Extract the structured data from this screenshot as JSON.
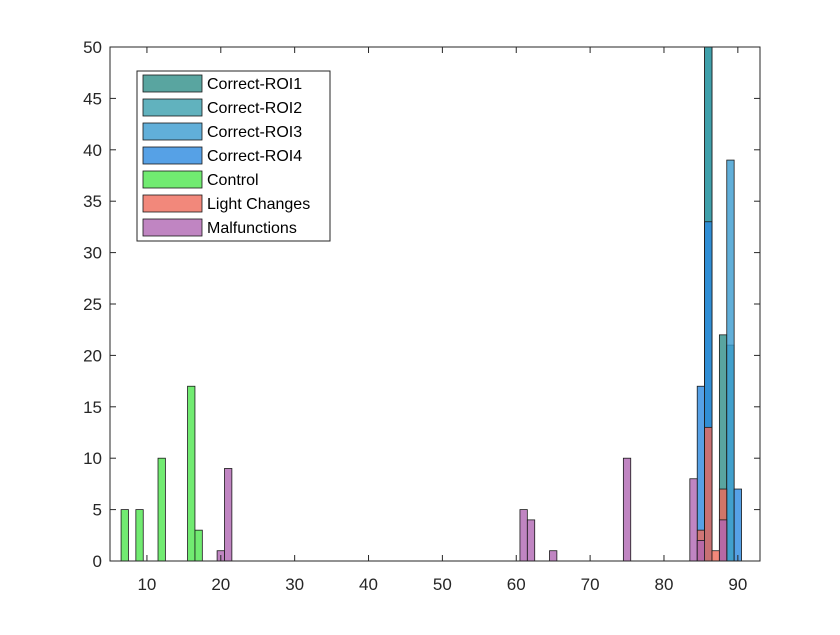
{
  "chart_data": {
    "type": "bar",
    "subtype": "overlaid-histogram",
    "title": "",
    "xlabel": "",
    "ylabel": "",
    "xlim": [
      5,
      93
    ],
    "ylim": [
      0,
      50
    ],
    "xticks": [
      10,
      20,
      30,
      40,
      50,
      60,
      70,
      80,
      90
    ],
    "yticks": [
      0,
      5,
      10,
      15,
      20,
      25,
      30,
      35,
      40,
      45,
      50
    ],
    "grid": false,
    "legend_position": "top-left",
    "bin_width": 1,
    "series": [
      {
        "name": "Correct-ROI1",
        "color": "#2f8f88",
        "bins": [
          {
            "x": 86,
            "count": 50
          },
          {
            "x": 88,
            "count": 22
          }
        ]
      },
      {
        "name": "Correct-ROI2",
        "color": "#3a9fae",
        "bins": [
          {
            "x": 86,
            "count": 50
          },
          {
            "x": 89,
            "count": 21
          }
        ]
      },
      {
        "name": "Correct-ROI3",
        "color": "#3a9bd0",
        "bins": [
          {
            "x": 89,
            "count": 39
          }
        ]
      },
      {
        "name": "Correct-ROI4",
        "color": "#2c8ae0",
        "bins": [
          {
            "x": 85,
            "count": 17
          },
          {
            "x": 86,
            "count": 33
          },
          {
            "x": 90,
            "count": 7
          }
        ]
      },
      {
        "name": "Control",
        "color": "#4ee64e",
        "bins": [
          {
            "x": 7,
            "count": 5
          },
          {
            "x": 9,
            "count": 5
          },
          {
            "x": 12,
            "count": 10
          },
          {
            "x": 16,
            "count": 17
          },
          {
            "x": 17,
            "count": 3
          }
        ]
      },
      {
        "name": "Light Changes",
        "color": "#ef6a5a",
        "bins": [
          {
            "x": 85,
            "count": 3
          },
          {
            "x": 86,
            "count": 13
          },
          {
            "x": 87,
            "count": 1
          },
          {
            "x": 88,
            "count": 7
          }
        ]
      },
      {
        "name": "Malfunctions",
        "color": "#b067b3",
        "bins": [
          {
            "x": 20,
            "count": 1
          },
          {
            "x": 21,
            "count": 9
          },
          {
            "x": 61,
            "count": 5
          },
          {
            "x": 62,
            "count": 4
          },
          {
            "x": 65,
            "count": 1
          },
          {
            "x": 75,
            "count": 10
          },
          {
            "x": 84,
            "count": 8
          },
          {
            "x": 85,
            "count": 2
          },
          {
            "x": 88,
            "count": 4
          }
        ]
      }
    ]
  }
}
